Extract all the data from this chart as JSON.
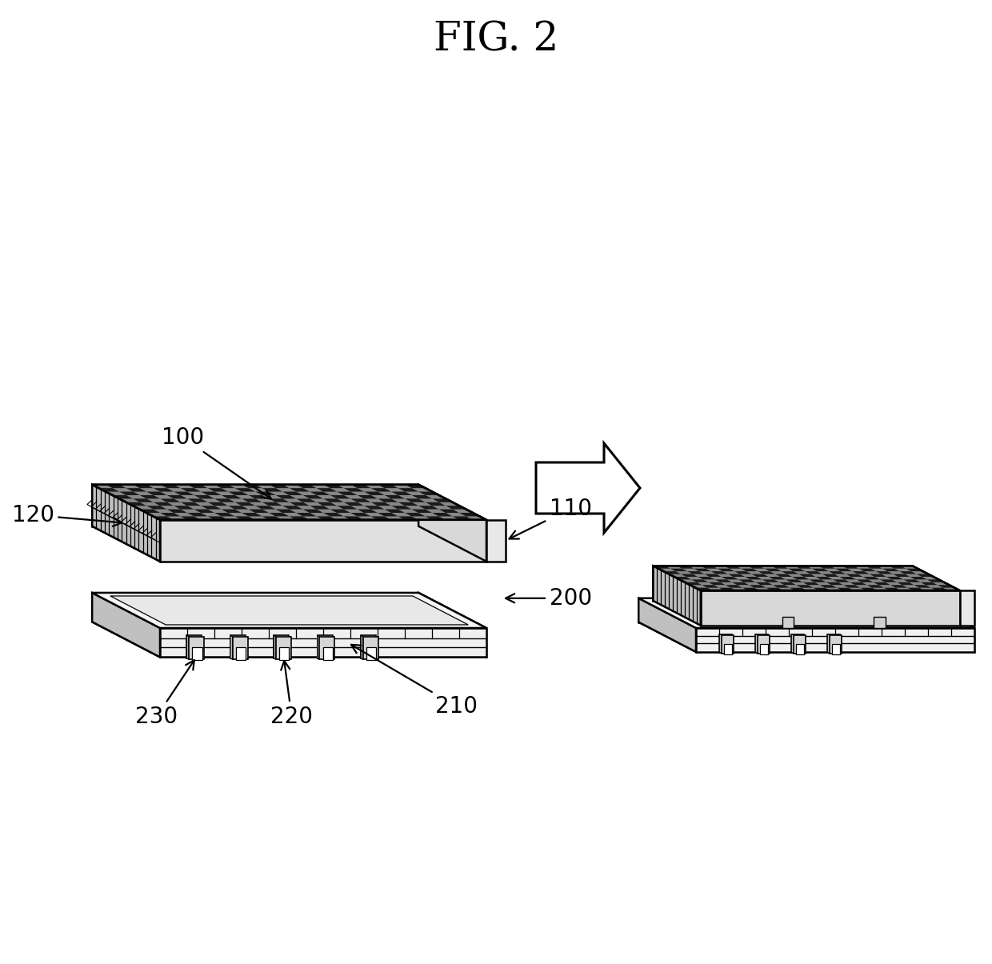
{
  "title": "FIG. 2",
  "title_fontsize": 36,
  "background_color": "#ffffff",
  "line_color": "#000000",
  "label_fontsize": 20,
  "lw_main": 1.8,
  "lw_detail": 1.0,
  "checker_dark": "#1a1a1a",
  "checker_light": "#888888",
  "face_top": "#d8d8d8",
  "face_front": "#f0f0f0",
  "face_right": "#e0e0e0",
  "face_left": "#c8c8c8",
  "face_dark": "#b0b0b0",
  "tray_front": "#f5f5f5",
  "tray_right": "#e8e8e8",
  "tab_fill": "#c8c8c8",
  "tab_inner": "#ffffff"
}
